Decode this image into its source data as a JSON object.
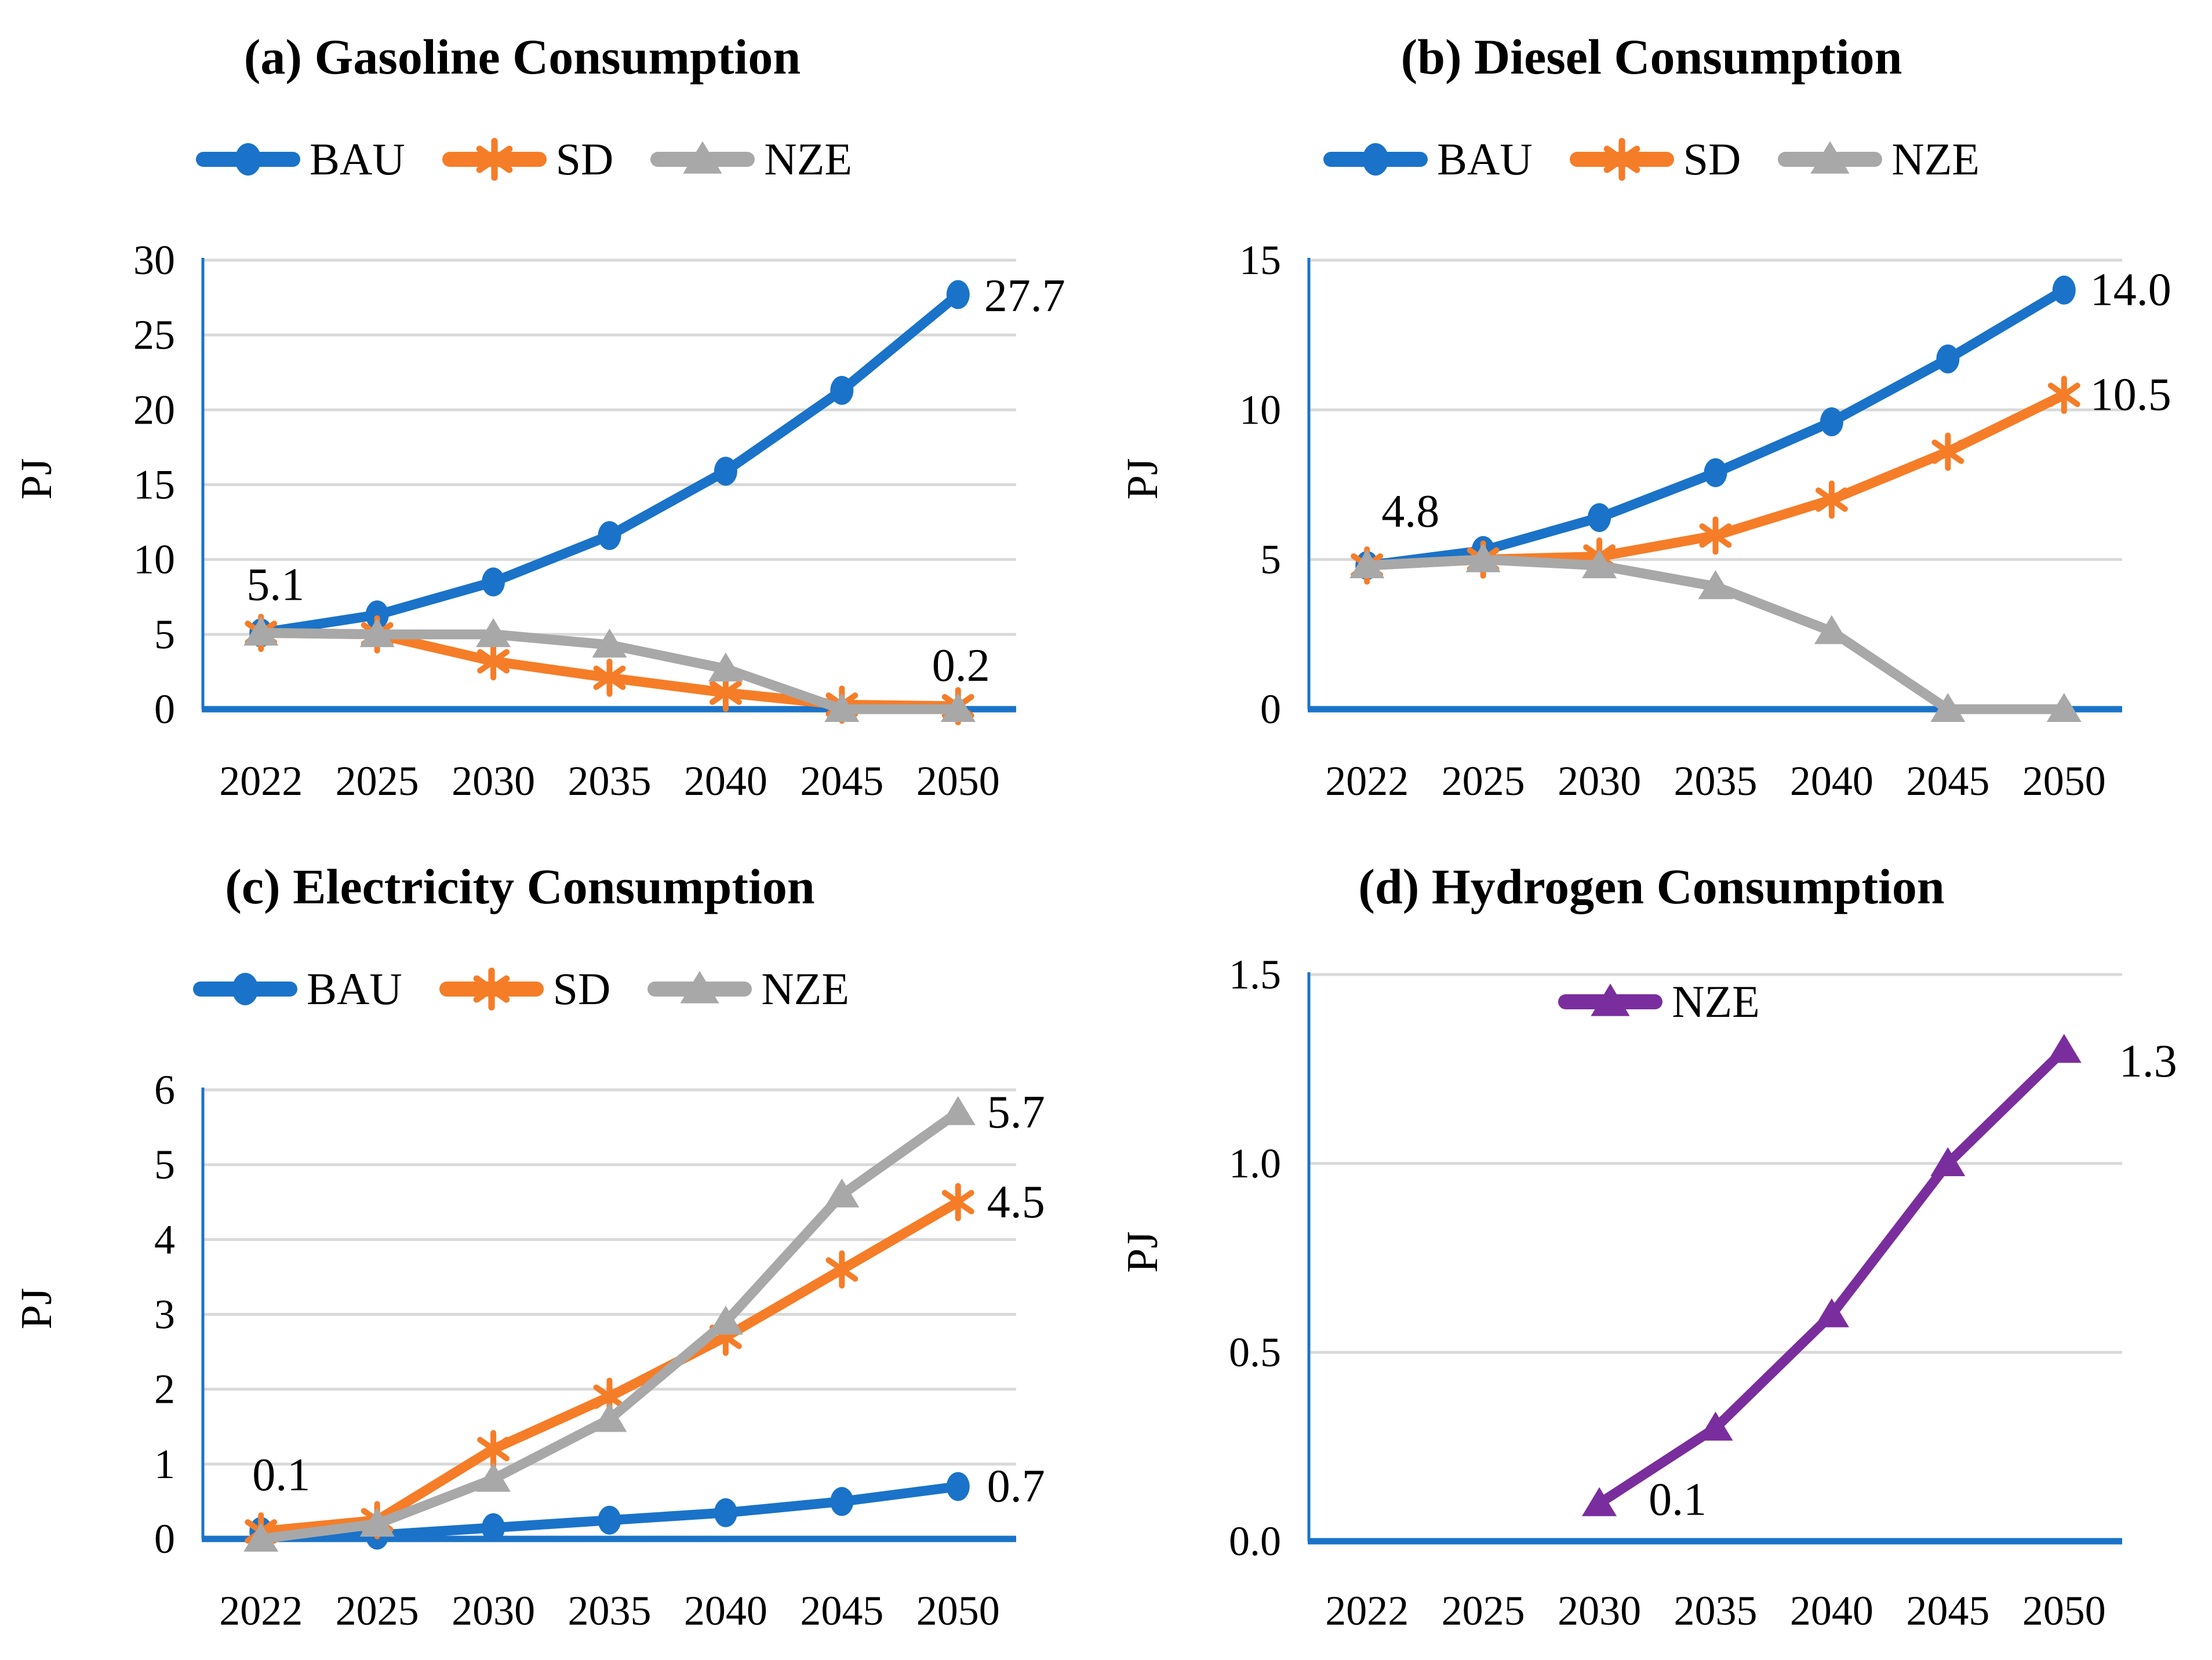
{
  "figure": {
    "unit": "PJ",
    "colors": {
      "bau_blue": "#1A73C8",
      "sd_orange": "#F57D28",
      "nze_gray": "#A8A8A8",
      "nze_purple": "#7A2E9D",
      "gridline": "#D9D9D9",
      "axis": "#1A73C8"
    }
  },
  "chart_data": [
    {
      "id": "gasoline",
      "type": "line",
      "title": "(a) Gasoline Consumption",
      "ylabel": "PJ",
      "xlabel": "",
      "grid": true,
      "categories": [
        "2022",
        "2025",
        "2030",
        "2035",
        "2040",
        "2045",
        "2050"
      ],
      "y_ticks": [
        "0",
        "5",
        "10",
        "15",
        "20",
        "25",
        "30"
      ],
      "ylim": [
        0,
        30
      ],
      "legend": {
        "position": "top",
        "items": [
          {
            "label": "BAU",
            "marker": "circle",
            "color": "#1A73C8"
          },
          {
            "label": "SD",
            "marker": "star",
            "color": "#F57D28"
          },
          {
            "label": "NZE",
            "marker": "triangle",
            "color": "#A8A8A8"
          }
        ]
      },
      "series": [
        {
          "name": "BAU",
          "marker": "circle",
          "color": "#1A73C8",
          "values": [
            5.1,
            6.3,
            8.5,
            11.6,
            15.9,
            21.3,
            27.7
          ]
        },
        {
          "name": "SD",
          "marker": "star",
          "color": "#F57D28",
          "values": [
            5.1,
            5.0,
            3.2,
            2.1,
            1.1,
            0.3,
            0.2
          ]
        },
        {
          "name": "NZE",
          "marker": "triangle",
          "color": "#A8A8A8",
          "values": [
            5.1,
            5.0,
            5.0,
            4.3,
            2.7,
            0.0,
            0.0
          ]
        }
      ],
      "point_labels": [
        {
          "text": "5.1",
          "x_index": 0,
          "dx": 25,
          "y_value": 8.3,
          "anchor": "middle"
        },
        {
          "text": "27.7",
          "x_index": 6,
          "dx": 45,
          "y_value": 27.6,
          "anchor": "start"
        },
        {
          "text": "0.2",
          "x_index": 6,
          "dx": 5,
          "y_value": 2.9,
          "anchor": "middle"
        }
      ]
    },
    {
      "id": "diesel",
      "type": "line",
      "title": "(b) Diesel Consumption",
      "ylabel": "PJ",
      "xlabel": "",
      "grid": true,
      "categories": [
        "2022",
        "2025",
        "2030",
        "2035",
        "2040",
        "2045",
        "2050"
      ],
      "y_ticks": [
        "0",
        "5",
        "10",
        "15"
      ],
      "ylim": [
        0,
        15
      ],
      "legend": {
        "position": "top",
        "items": [
          {
            "label": "BAU",
            "marker": "circle",
            "color": "#1A73C8"
          },
          {
            "label": "SD",
            "marker": "star",
            "color": "#F57D28"
          },
          {
            "label": "NZE",
            "marker": "triangle",
            "color": "#A8A8A8"
          }
        ]
      },
      "series": [
        {
          "name": "BAU",
          "marker": "circle",
          "color": "#1A73C8",
          "values": [
            4.8,
            5.3,
            6.4,
            7.9,
            9.6,
            11.7,
            14.0
          ]
        },
        {
          "name": "SD",
          "marker": "star",
          "color": "#F57D28",
          "values": [
            4.8,
            5.0,
            5.1,
            5.8,
            7.0,
            8.6,
            10.5
          ]
        },
        {
          "name": "NZE",
          "marker": "triangle",
          "color": "#A8A8A8",
          "values": [
            4.8,
            5.0,
            4.8,
            4.1,
            2.6,
            0.0,
            0.0
          ]
        }
      ],
      "point_labels": [
        {
          "text": "4.8",
          "x_index": 0,
          "dx": 75,
          "y_value": 6.6,
          "anchor": "middle"
        },
        {
          "text": "14.0",
          "x_index": 6,
          "dx": 45,
          "y_value": 14.0,
          "anchor": "start"
        },
        {
          "text": "10.5",
          "x_index": 6,
          "dx": 45,
          "y_value": 10.5,
          "anchor": "start"
        }
      ]
    },
    {
      "id": "electricity",
      "type": "line",
      "title": "(c) Electricity Consumption",
      "ylabel": "PJ",
      "xlabel": "",
      "grid": true,
      "categories": [
        "2022",
        "2025",
        "2030",
        "2035",
        "2040",
        "2045",
        "2050"
      ],
      "y_ticks": [
        "0",
        "1",
        "2",
        "3",
        "4",
        "5",
        "6"
      ],
      "ylim": [
        0,
        6
      ],
      "legend": {
        "position": "top",
        "items": [
          {
            "label": "BAU",
            "marker": "circle",
            "color": "#1A73C8"
          },
          {
            "label": "SD",
            "marker": "star",
            "color": "#F57D28"
          },
          {
            "label": "NZE",
            "marker": "triangle",
            "color": "#A8A8A8"
          }
        ]
      },
      "series": [
        {
          "name": "BAU",
          "marker": "circle",
          "color": "#1A73C8",
          "values": [
            0.1,
            0.05,
            0.15,
            0.25,
            0.35,
            0.5,
            0.7
          ]
        },
        {
          "name": "SD",
          "marker": "star",
          "color": "#F57D28",
          "values": [
            0.1,
            0.25,
            1.2,
            1.9,
            2.7,
            3.6,
            4.5
          ]
        },
        {
          "name": "NZE",
          "marker": "triangle",
          "color": "#A8A8A8",
          "values": [
            0.0,
            0.2,
            0.8,
            1.6,
            2.9,
            4.6,
            5.7
          ]
        }
      ],
      "point_labels": [
        {
          "text": "0.1",
          "x_index": 0,
          "dx": 35,
          "y_value": 0.85,
          "anchor": "middle"
        },
        {
          "text": "5.7",
          "x_index": 6,
          "dx": 50,
          "y_value": 5.7,
          "anchor": "start"
        },
        {
          "text": "4.5",
          "x_index": 6,
          "dx": 50,
          "y_value": 4.5,
          "anchor": "start"
        },
        {
          "text": "0.7",
          "x_index": 6,
          "dx": 50,
          "y_value": 0.7,
          "anchor": "start"
        }
      ]
    },
    {
      "id": "hydrogen",
      "type": "line",
      "title": "(d) Hydrogen Consumption",
      "ylabel": "PJ",
      "xlabel": "",
      "grid": true,
      "categories": [
        "2022",
        "2025",
        "2030",
        "2035",
        "2040",
        "2045",
        "2050"
      ],
      "y_ticks": [
        "0.0",
        "0.5",
        "1.0",
        "1.5"
      ],
      "ylim": [
        0,
        1.5
      ],
      "legend": {
        "position": "inside",
        "items": [
          {
            "label": "NZE",
            "marker": "triangle",
            "color": "#7A2E9D"
          }
        ]
      },
      "series": [
        {
          "name": "NZE",
          "marker": "triangle",
          "color": "#7A2E9D",
          "values": [
            null,
            null,
            0.1,
            0.3,
            0.6,
            1.0,
            1.3
          ]
        }
      ],
      "point_labels": [
        {
          "text": "0.1",
          "x_index": 2,
          "dx": 85,
          "y_value": 0.11,
          "anchor": "start"
        },
        {
          "text": "1.3",
          "x_index": 6,
          "dx": 95,
          "y_value": 1.27,
          "anchor": "start"
        }
      ]
    }
  ]
}
